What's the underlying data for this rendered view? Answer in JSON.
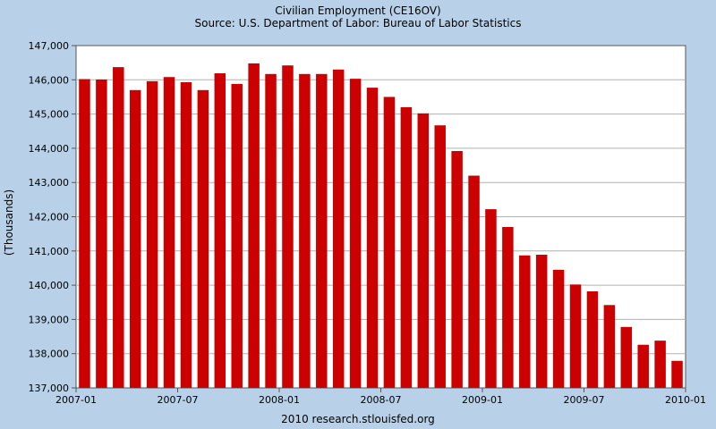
{
  "chart_data": {
    "type": "bar",
    "title": "Civilian Employment (CE16OV)",
    "subtitle": "Source: U.S. Department of Labor: Bureau of Labor Statistics",
    "xlabel": "",
    "ylabel": "(Thousands)",
    "footer": "2010 research.stlouisfed.org",
    "ylim": [
      137000,
      147000
    ],
    "yticks": [
      137000,
      138000,
      139000,
      140000,
      141000,
      142000,
      143000,
      144000,
      145000,
      146000,
      147000
    ],
    "ytick_labels": [
      "137,000",
      "138,000",
      "139,000",
      "140,000",
      "141,000",
      "142,000",
      "143,000",
      "144,000",
      "145,000",
      "146,000",
      "147,000"
    ],
    "xtick_labels": [
      "2007-01",
      "2007-07",
      "2008-01",
      "2008-07",
      "2009-01",
      "2009-07",
      "2010-01"
    ],
    "xtick_positions": [
      0,
      6,
      12,
      18,
      24,
      30,
      36
    ],
    "grid": true,
    "bar_color": "#cc0000",
    "categories": [
      "2007-01",
      "2007-02",
      "2007-03",
      "2007-04",
      "2007-05",
      "2007-06",
      "2007-07",
      "2007-08",
      "2007-09",
      "2007-10",
      "2007-11",
      "2007-12",
      "2008-01",
      "2008-02",
      "2008-03",
      "2008-04",
      "2008-05",
      "2008-06",
      "2008-07",
      "2008-08",
      "2008-09",
      "2008-10",
      "2008-11",
      "2008-12",
      "2009-01",
      "2009-02",
      "2009-03",
      "2009-04",
      "2009-05",
      "2009-06",
      "2009-07",
      "2009-08",
      "2009-09",
      "2009-10",
      "2009-11",
      "2009-12"
    ],
    "values": [
      146020,
      146010,
      146370,
      145700,
      145960,
      146080,
      145930,
      145700,
      146190,
      145880,
      146480,
      146170,
      146420,
      146170,
      146170,
      146300,
      146030,
      145770,
      145500,
      145200,
      145020,
      144670,
      143920,
      143200,
      142220,
      141700,
      140870,
      140890,
      140450,
      140020,
      139820,
      139420,
      138780,
      138260,
      138380,
      137790
    ]
  }
}
